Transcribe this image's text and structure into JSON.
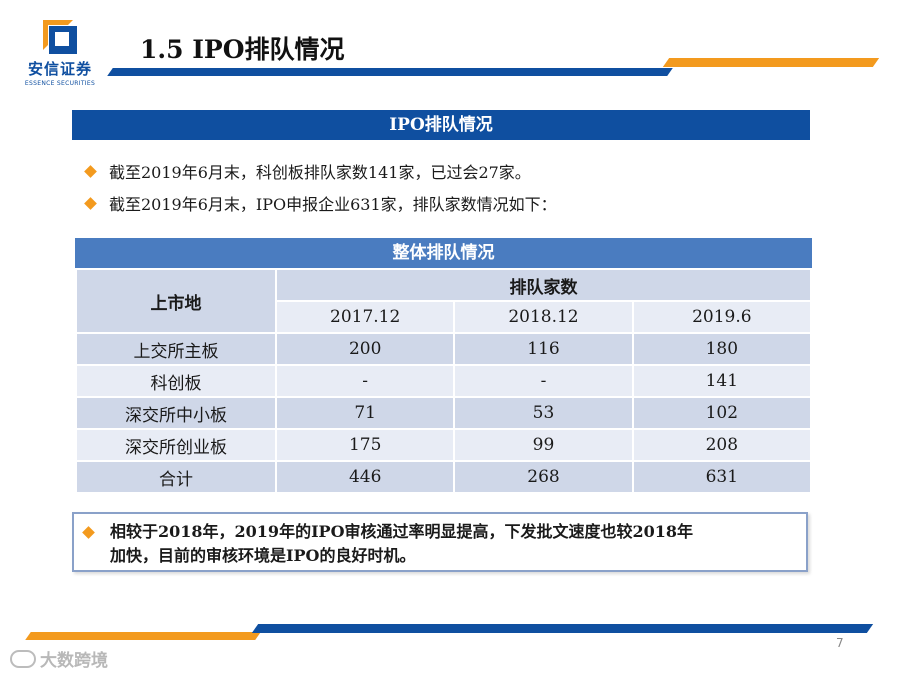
{
  "logo": {
    "name": "安信证券",
    "subtitle": "ESSENCE SECURITIES"
  },
  "title": "1.5 IPO排队情况",
  "section_title": "IPO排队情况",
  "bullets": [
    "截至2019年6月末，科创板排队家数141家，已过会27家。",
    "截至2019年6月末，IPO申报企业631家，排队家数情况如下："
  ],
  "table": {
    "caption": "整体排队情况",
    "row_header": "上市地",
    "group_header": "排队家数",
    "years": [
      "2017.12",
      "2018.12",
      "2019.6"
    ],
    "rows": [
      {
        "label": "上交所主板",
        "values": [
          "200",
          "116",
          "180"
        ]
      },
      {
        "label": "科创板",
        "values": [
          "-",
          "-",
          "141"
        ]
      },
      {
        "label": "深交所中小板",
        "values": [
          "71",
          "53",
          "102"
        ]
      },
      {
        "label": "深交所创业板",
        "values": [
          "175",
          "99",
          "208"
        ]
      },
      {
        "label": "合计",
        "values": [
          "446",
          "268",
          "631"
        ]
      }
    ]
  },
  "note": {
    "line1": "相较于2018年，2019年的IPO审核通过率明显提高，下发批文速度也较2018年",
    "line2": "加快，目前的审核环境是IPO的良好时机。"
  },
  "page_number": "7",
  "watermark": "大数跨境",
  "colors": {
    "brand_blue": "#0f4fa0",
    "brand_orange": "#f39a1e",
    "table_header": "#4a7cc0"
  }
}
